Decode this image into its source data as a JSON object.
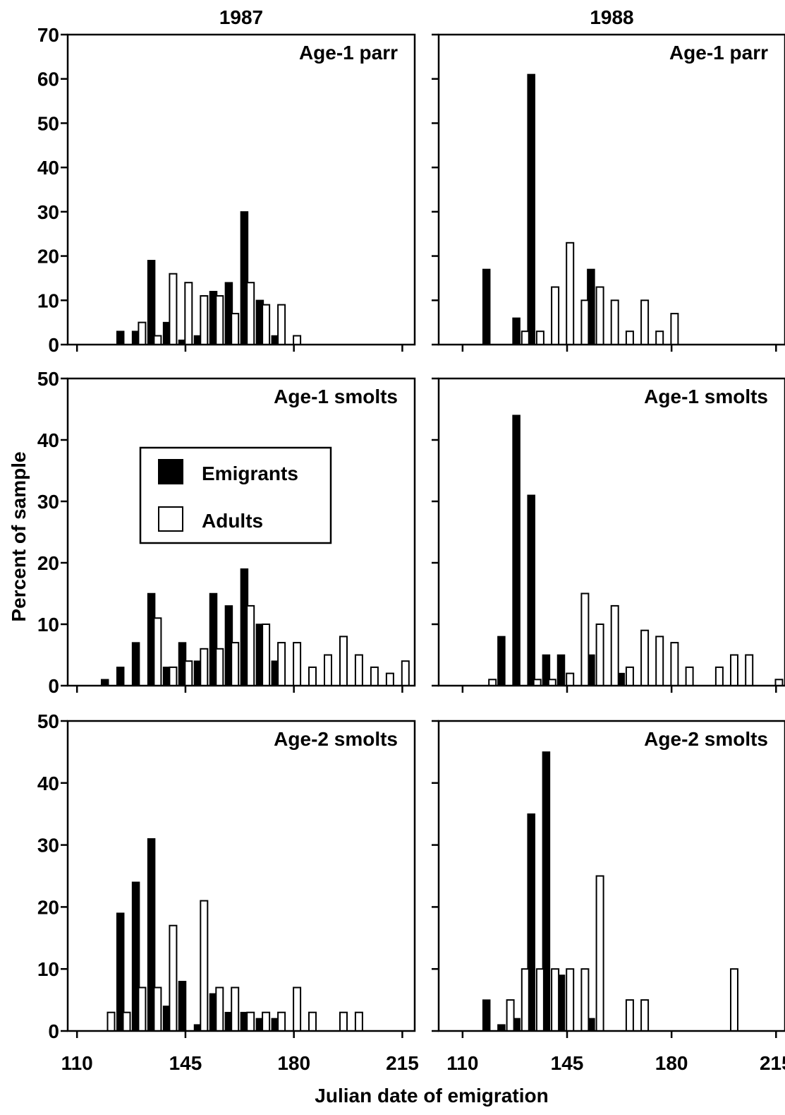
{
  "figure": {
    "ylabel": "Percent of sample",
    "xlabel": "Julian date of emigration",
    "columns": [
      "1987",
      "1988"
    ],
    "rows": [
      "Age-1 parr",
      "Age-1 smolts",
      "Age-2 smolts"
    ],
    "legend": {
      "location": "inside top-left of middle-left panel",
      "entries": [
        {
          "label": "Emigrants",
          "fill": "#000000"
        },
        {
          "label": "Adults",
          "fill": "#ffffff"
        }
      ]
    },
    "xticks": [
      110,
      145,
      180,
      215
    ]
  },
  "chart_data": [
    {
      "type": "bar",
      "year": "1987",
      "panel_label": "Age-1 parr",
      "xlim": [
        107,
        219
      ],
      "ylim": [
        0,
        70
      ],
      "yticks": [
        0,
        10,
        20,
        30,
        40,
        50,
        60,
        70
      ],
      "series": [
        {
          "name": "Emigrants",
          "color": "#000000",
          "x": [
            124,
            129,
            134,
            139,
            144,
            149,
            154,
            159,
            164,
            169,
            174
          ],
          "values": [
            3,
            3,
            19,
            5,
            1,
            2,
            12,
            14,
            30,
            10,
            2
          ]
        },
        {
          "name": "Adults",
          "color": "#ffffff",
          "x": [
            131,
            136,
            141,
            146,
            151,
            156,
            161,
            166,
            171,
            176,
            181
          ],
          "values": [
            5,
            2,
            16,
            14,
            11,
            11,
            7,
            14,
            9,
            9,
            2
          ]
        }
      ]
    },
    {
      "type": "bar",
      "year": "1988",
      "panel_label": "Age-1 parr",
      "xlim": [
        102,
        218
      ],
      "ylim": [
        0,
        70
      ],
      "yticks": [
        0,
        10,
        20,
        30,
        40,
        50,
        60,
        70
      ],
      "series": [
        {
          "name": "Emigrants",
          "color": "#000000",
          "x": [
            118,
            128,
            133,
            153
          ],
          "values": [
            17,
            6,
            61,
            17
          ]
        },
        {
          "name": "Adults",
          "color": "#ffffff",
          "x": [
            131,
            136,
            141,
            146,
            151,
            156,
            161,
            166,
            171,
            176,
            181
          ],
          "values": [
            3,
            3,
            13,
            23,
            10,
            13,
            10,
            3,
            10,
            3,
            7
          ]
        }
      ]
    },
    {
      "type": "bar",
      "year": "1987",
      "panel_label": "Age-1 smolts",
      "xlim": [
        107,
        219
      ],
      "ylim": [
        0,
        50
      ],
      "yticks": [
        0,
        10,
        20,
        30,
        40,
        50
      ],
      "series": [
        {
          "name": "Emigrants",
          "color": "#000000",
          "x": [
            119,
            124,
            129,
            134,
            139,
            144,
            149,
            154,
            159,
            164,
            169,
            174
          ],
          "values": [
            1,
            3,
            7,
            15,
            3,
            7,
            4,
            15,
            13,
            19,
            10,
            4
          ]
        },
        {
          "name": "Adults",
          "color": "#ffffff",
          "x": [
            136,
            141,
            146,
            151,
            156,
            161,
            166,
            171,
            176,
            181,
            186,
            191,
            196,
            201,
            206,
            211,
            216
          ],
          "values": [
            11,
            3,
            4,
            6,
            6,
            7,
            13,
            10,
            7,
            7,
            3,
            5,
            8,
            5,
            3,
            2,
            4
          ]
        }
      ]
    },
    {
      "type": "bar",
      "year": "1988",
      "panel_label": "Age-1 smolts",
      "xlim": [
        102,
        218
      ],
      "ylim": [
        0,
        50
      ],
      "yticks": [
        0,
        10,
        20,
        30,
        40,
        50
      ],
      "series": [
        {
          "name": "Emigrants",
          "color": "#000000",
          "x": [
            123,
            128,
            133,
            138,
            143,
            153,
            163
          ],
          "values": [
            8,
            44,
            31,
            5,
            5,
            5,
            2
          ]
        },
        {
          "name": "Adults",
          "color": "#ffffff",
          "x": [
            120,
            135,
            140,
            146,
            151,
            156,
            161,
            166,
            171,
            176,
            181,
            186,
            196,
            201,
            206,
            216
          ],
          "values": [
            1,
            1,
            1,
            2,
            15,
            10,
            13,
            3,
            9,
            8,
            7,
            3,
            3,
            5,
            5,
            1
          ]
        }
      ]
    },
    {
      "type": "bar",
      "year": "1987",
      "panel_label": "Age-2 smolts",
      "xlim": [
        107,
        219
      ],
      "ylim": [
        0,
        50
      ],
      "yticks": [
        0,
        10,
        20,
        30,
        40,
        50
      ],
      "series": [
        {
          "name": "Emigrants",
          "color": "#000000",
          "x": [
            124,
            129,
            134,
            139,
            144,
            149,
            154,
            159,
            164,
            169,
            174
          ],
          "values": [
            19,
            24,
            31,
            4,
            8,
            1,
            6,
            3,
            3,
            2,
            2
          ]
        },
        {
          "name": "Adults",
          "color": "#ffffff",
          "x": [
            121,
            126,
            131,
            136,
            141,
            151,
            156,
            161,
            166,
            171,
            176,
            181,
            186,
            196,
            201
          ],
          "values": [
            3,
            3,
            7,
            7,
            17,
            21,
            7,
            7,
            3,
            3,
            3,
            7,
            3,
            3,
            3
          ]
        }
      ]
    },
    {
      "type": "bar",
      "year": "1988",
      "panel_label": "Age-2 smolts",
      "xlim": [
        102,
        218
      ],
      "ylim": [
        0,
        50
      ],
      "yticks": [
        0,
        10,
        20,
        30,
        40,
        50
      ],
      "series": [
        {
          "name": "Emigrants",
          "color": "#000000",
          "x": [
            118,
            123,
            128,
            133,
            138,
            143,
            153
          ],
          "values": [
            5,
            1,
            2,
            35,
            45,
            9,
            2
          ]
        },
        {
          "name": "Adults",
          "color": "#ffffff",
          "x": [
            126,
            131,
            136,
            141,
            146,
            151,
            156,
            166,
            171,
            201
          ],
          "values": [
            5,
            10,
            10,
            10,
            10,
            10,
            25,
            5,
            5,
            10
          ]
        }
      ]
    }
  ]
}
